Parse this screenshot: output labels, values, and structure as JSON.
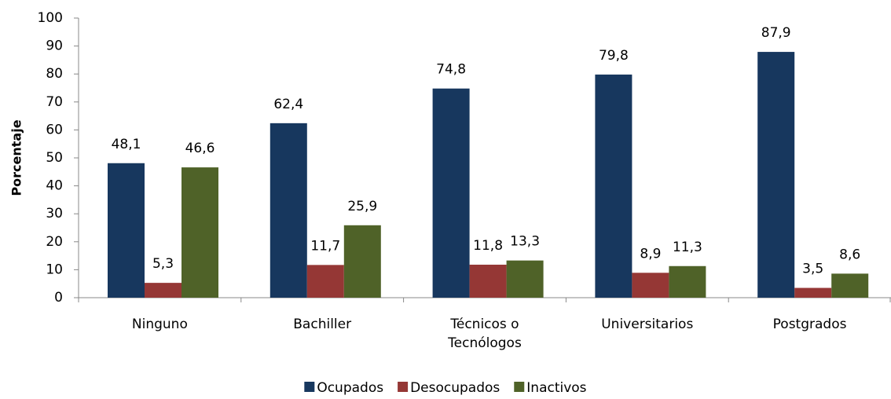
{
  "chart_data": {
    "type": "bar",
    "y_label": "Porcentaje",
    "categories": [
      "Ninguno",
      "Bachiller",
      "Técnicos o Tecnólogos",
      "Universitarios",
      "Postgrados"
    ],
    "series": [
      {
        "name": "Ocupados",
        "color": "#17375e",
        "values": [
          48.1,
          62.4,
          74.8,
          79.8,
          87.9
        ],
        "value_labels": [
          "48,1",
          "62,4",
          "74,8",
          "79,8",
          "87,9"
        ]
      },
      {
        "name": "Desocupados",
        "color": "#953735",
        "values": [
          5.3,
          11.7,
          11.8,
          8.9,
          3.5
        ],
        "value_labels": [
          "5,3",
          "11,7",
          "11,8",
          "8,9",
          "3,5"
        ]
      },
      {
        "name": "Inactivos",
        "color": "#4f6228",
        "values": [
          46.6,
          25.9,
          13.3,
          11.3,
          8.6
        ],
        "value_labels": [
          "46,6",
          "25,9",
          "13,3",
          "11,3",
          "8,6"
        ]
      }
    ],
    "ylim": [
      0,
      100
    ],
    "yticks": [
      0,
      10,
      20,
      30,
      40,
      50,
      60,
      70,
      80,
      90,
      100
    ],
    "grid": false,
    "legend": "bottom"
  }
}
